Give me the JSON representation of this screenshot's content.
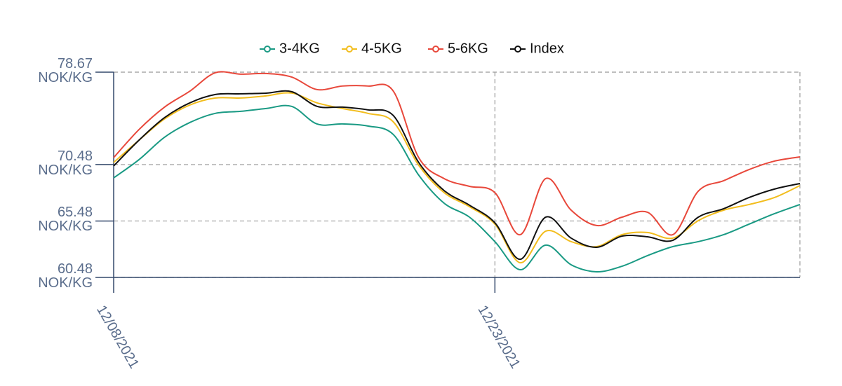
{
  "chart_data": {
    "type": "line",
    "categories": [
      "12/08/2021",
      null,
      null,
      null,
      null,
      null,
      null,
      null,
      null,
      null,
      null,
      null,
      null,
      null,
      null,
      "12/23/2021",
      null,
      null,
      null,
      null,
      null,
      null,
      null,
      null,
      null,
      null,
      null,
      null
    ],
    "series": [
      {
        "name": "3-4KG",
        "color": "#1a9a84",
        "values": [
          69.3,
          70.92,
          72.9,
          74.21,
          75.02,
          75.2,
          75.45,
          75.64,
          74.08,
          74.08,
          73.9,
          73.15,
          69.55,
          67.06,
          65.82,
          63.65,
          61.16,
          63.34,
          61.6,
          60.98,
          61.47,
          62.41,
          63.21,
          63.65,
          64.27,
          65.2,
          66.13,
          66.94
        ]
      },
      {
        "name": "4-5KG",
        "color": "#f2bd1d",
        "values": [
          70.67,
          72.65,
          74.52,
          75.76,
          76.38,
          76.38,
          76.57,
          76.82,
          75.95,
          75.45,
          75.02,
          74.27,
          70.42,
          68.0,
          66.75,
          65.2,
          61.78,
          64.58,
          63.65,
          63.21,
          64.27,
          64.46,
          63.96,
          65.51,
          66.44,
          66.94,
          67.56,
          68.62
        ]
      },
      {
        "name": "5-6KG",
        "color": "#e8483b",
        "values": [
          71.1,
          73.59,
          75.57,
          76.99,
          78.62,
          78.49,
          78.55,
          78.24,
          77.13,
          77.44,
          77.44,
          77.0,
          71.1,
          69.24,
          68.55,
          67.99,
          64.27,
          69.24,
          66.44,
          65.08,
          65.82,
          66.26,
          64.27,
          68.12,
          69.05,
          70.04,
          70.79,
          71.16
        ]
      },
      {
        "name": "Index",
        "color": "#111111",
        "values": [
          70.36,
          72.65,
          74.64,
          75.95,
          76.69,
          76.75,
          76.81,
          76.94,
          75.64,
          75.57,
          75.33,
          74.83,
          70.67,
          68.18,
          66.88,
          65.32,
          62.09,
          65.82,
          63.96,
          63.15,
          64.14,
          64.08,
          63.77,
          65.82,
          66.57,
          67.56,
          68.31,
          68.8
        ]
      }
    ],
    "ylim": [
      60.48,
      78.67
    ],
    "yticks": [
      {
        "value": 60.48,
        "label": "60.48 NOK/KG"
      },
      {
        "value": 65.48,
        "label": "65.48 NOK/KG"
      },
      {
        "value": 70.48,
        "label": "70.48 NOK/KG"
      },
      {
        "value": 78.67,
        "label": "78.67 NOK/KG"
      }
    ],
    "grid": true
  }
}
